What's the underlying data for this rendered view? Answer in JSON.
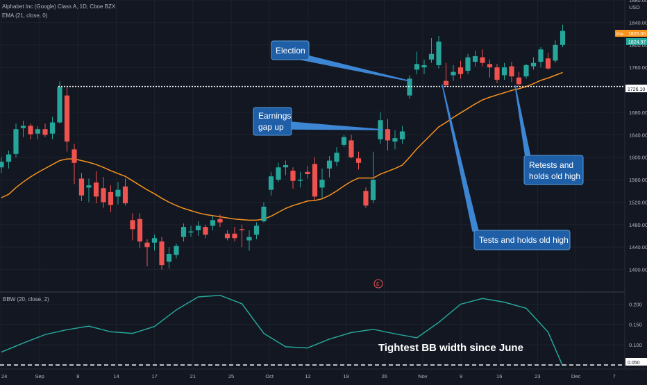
{
  "header": {
    "symbol_line": "Alphabet Inc (Google) Class A, 1D, Cboe BZX",
    "ema_line": "EMA (21, close, 0)",
    "bbw_line": "BBW (20, close, 2)",
    "currency": "USD"
  },
  "price_badges": {
    "pre_label": "Pre",
    "pre_value": "1825.00",
    "last_value": "1824.97",
    "level_value": "1726.10"
  },
  "colors": {
    "background": "#131722",
    "grid": "#1e222d",
    "up": "#26a69a",
    "down": "#ef5350",
    "ema": "#f7931e",
    "bbw": "#26a69a",
    "callout": "#1f5fa8",
    "callout_border": "#5b9bd5"
  },
  "annotations": {
    "election": "Election",
    "earnings_line1": "Earnings",
    "earnings_line2": "gap up",
    "tests": "Tests and holds old high",
    "retests_line1": "Retests and",
    "retests_line2": "holds old high",
    "tightest": "Tightest BB width since June",
    "earnings_marker": "E"
  },
  "chart_data": [
    {
      "type": "candlestick",
      "title": "Alphabet Inc (Google) Class A, 1D, Cboe BZX",
      "y_range": [
        1360,
        1880
      ],
      "y_ticks": [
        "1400.00",
        "1440.00",
        "1480.00",
        "1520.00",
        "1560.00",
        "1600.00",
        "1640.00",
        "1680.00",
        "1760.00",
        "1800.00",
        "1840.00",
        "1880.00"
      ],
      "x_ticks": [
        "24",
        "Sep",
        "8",
        "14",
        "17",
        "21",
        "25",
        "Oct",
        "12",
        "19",
        "26",
        "Nov",
        "9",
        "16",
        "23",
        "Dec",
        "7"
      ],
      "horizontal_level": 1726.1,
      "ohlc": [
        {
          "o": 1582,
          "h": 1600,
          "l": 1572,
          "c": 1592
        },
        {
          "o": 1592,
          "h": 1612,
          "l": 1580,
          "c": 1605
        },
        {
          "o": 1606,
          "h": 1660,
          "l": 1600,
          "c": 1650
        },
        {
          "o": 1652,
          "h": 1665,
          "l": 1636,
          "c": 1656
        },
        {
          "o": 1656,
          "h": 1660,
          "l": 1632,
          "c": 1641
        },
        {
          "o": 1642,
          "h": 1655,
          "l": 1632,
          "c": 1650
        },
        {
          "o": 1650,
          "h": 1660,
          "l": 1636,
          "c": 1640
        },
        {
          "o": 1642,
          "h": 1672,
          "l": 1632,
          "c": 1662
        },
        {
          "o": 1662,
          "h": 1735,
          "l": 1660,
          "c": 1725
        },
        {
          "o": 1710,
          "h": 1725,
          "l": 1610,
          "c": 1628
        },
        {
          "o": 1614,
          "h": 1624,
          "l": 1552,
          "c": 1590
        },
        {
          "o": 1562,
          "h": 1572,
          "l": 1522,
          "c": 1532
        },
        {
          "o": 1546,
          "h": 1562,
          "l": 1520,
          "c": 1550
        },
        {
          "o": 1555,
          "h": 1575,
          "l": 1518,
          "c": 1530
        },
        {
          "o": 1545,
          "h": 1565,
          "l": 1510,
          "c": 1520
        },
        {
          "o": 1538,
          "h": 1550,
          "l": 1502,
          "c": 1515
        },
        {
          "o": 1530,
          "h": 1556,
          "l": 1516,
          "c": 1542
        },
        {
          "o": 1548,
          "h": 1562,
          "l": 1514,
          "c": 1518
        },
        {
          "o": 1488,
          "h": 1500,
          "l": 1452,
          "c": 1472
        },
        {
          "o": 1490,
          "h": 1500,
          "l": 1438,
          "c": 1450
        },
        {
          "o": 1448,
          "h": 1454,
          "l": 1406,
          "c": 1440
        },
        {
          "o": 1448,
          "h": 1462,
          "l": 1434,
          "c": 1456
        },
        {
          "o": 1450,
          "h": 1458,
          "l": 1400,
          "c": 1408
        },
        {
          "o": 1414,
          "h": 1440,
          "l": 1402,
          "c": 1428
        },
        {
          "o": 1426,
          "h": 1446,
          "l": 1420,
          "c": 1442
        },
        {
          "o": 1458,
          "h": 1482,
          "l": 1450,
          "c": 1476
        },
        {
          "o": 1466,
          "h": 1478,
          "l": 1458,
          "c": 1468
        },
        {
          "o": 1470,
          "h": 1486,
          "l": 1460,
          "c": 1478
        },
        {
          "o": 1476,
          "h": 1480,
          "l": 1456,
          "c": 1462
        },
        {
          "o": 1478,
          "h": 1496,
          "l": 1470,
          "c": 1488
        },
        {
          "o": 1490,
          "h": 1498,
          "l": 1476,
          "c": 1484
        },
        {
          "o": 1464,
          "h": 1470,
          "l": 1452,
          "c": 1456
        },
        {
          "o": 1464,
          "h": 1476,
          "l": 1450,
          "c": 1456
        },
        {
          "o": 1472,
          "h": 1480,
          "l": 1440,
          "c": 1470
        },
        {
          "o": 1452,
          "h": 1470,
          "l": 1434,
          "c": 1458
        },
        {
          "o": 1462,
          "h": 1484,
          "l": 1454,
          "c": 1478
        },
        {
          "o": 1486,
          "h": 1520,
          "l": 1484,
          "c": 1512
        },
        {
          "o": 1542,
          "h": 1574,
          "l": 1532,
          "c": 1566
        },
        {
          "o": 1560,
          "h": 1590,
          "l": 1556,
          "c": 1582
        },
        {
          "o": 1582,
          "h": 1594,
          "l": 1568,
          "c": 1586
        },
        {
          "o": 1576,
          "h": 1582,
          "l": 1544,
          "c": 1558
        },
        {
          "o": 1558,
          "h": 1574,
          "l": 1546,
          "c": 1560
        },
        {
          "o": 1574,
          "h": 1584,
          "l": 1562,
          "c": 1570
        },
        {
          "o": 1588,
          "h": 1600,
          "l": 1522,
          "c": 1530
        },
        {
          "o": 1546,
          "h": 1580,
          "l": 1528,
          "c": 1560
        },
        {
          "o": 1580,
          "h": 1602,
          "l": 1564,
          "c": 1594
        },
        {
          "o": 1592,
          "h": 1618,
          "l": 1584,
          "c": 1608
        },
        {
          "o": 1622,
          "h": 1640,
          "l": 1618,
          "c": 1636
        },
        {
          "o": 1630,
          "h": 1640,
          "l": 1598,
          "c": 1600
        },
        {
          "o": 1598,
          "h": 1610,
          "l": 1578,
          "c": 1590
        },
        {
          "o": 1540,
          "h": 1546,
          "l": 1510,
          "c": 1514
        },
        {
          "o": 1524,
          "h": 1610,
          "l": 1518,
          "c": 1560
        },
        {
          "o": 1632,
          "h": 1680,
          "l": 1624,
          "c": 1666
        },
        {
          "o": 1650,
          "h": 1668,
          "l": 1612,
          "c": 1630
        },
        {
          "o": 1628,
          "h": 1648,
          "l": 1614,
          "c": 1634
        },
        {
          "o": 1632,
          "h": 1656,
          "l": 1624,
          "c": 1646
        },
        {
          "o": 1710,
          "h": 1746,
          "l": 1704,
          "c": 1740
        },
        {
          "o": 1756,
          "h": 1788,
          "l": 1748,
          "c": 1766
        },
        {
          "o": 1760,
          "h": 1774,
          "l": 1748,
          "c": 1764
        },
        {
          "o": 1774,
          "h": 1812,
          "l": 1768,
          "c": 1784
        },
        {
          "o": 1764,
          "h": 1816,
          "l": 1758,
          "c": 1806
        },
        {
          "o": 1736,
          "h": 1768,
          "l": 1726,
          "c": 1728
        },
        {
          "o": 1746,
          "h": 1764,
          "l": 1736,
          "c": 1752
        },
        {
          "o": 1760,
          "h": 1772,
          "l": 1740,
          "c": 1748
        },
        {
          "o": 1754,
          "h": 1784,
          "l": 1748,
          "c": 1778
        },
        {
          "o": 1770,
          "h": 1790,
          "l": 1762,
          "c": 1780
        },
        {
          "o": 1778,
          "h": 1792,
          "l": 1762,
          "c": 1768
        },
        {
          "o": 1766,
          "h": 1774,
          "l": 1742,
          "c": 1760
        },
        {
          "o": 1760,
          "h": 1766,
          "l": 1732,
          "c": 1738
        },
        {
          "o": 1746,
          "h": 1768,
          "l": 1738,
          "c": 1760
        },
        {
          "o": 1762,
          "h": 1770,
          "l": 1734,
          "c": 1744
        },
        {
          "o": 1742,
          "h": 1752,
          "l": 1726,
          "c": 1730
        },
        {
          "o": 1744,
          "h": 1766,
          "l": 1740,
          "c": 1764
        },
        {
          "o": 1762,
          "h": 1778,
          "l": 1756,
          "c": 1768
        },
        {
          "o": 1770,
          "h": 1796,
          "l": 1760,
          "c": 1792
        },
        {
          "o": 1776,
          "h": 1786,
          "l": 1756,
          "c": 1758
        },
        {
          "o": 1772,
          "h": 1808,
          "l": 1768,
          "c": 1800
        },
        {
          "o": 1800,
          "h": 1836,
          "l": 1796,
          "c": 1825
        }
      ],
      "ema": [
        1528,
        1534,
        1546,
        1556,
        1565,
        1573,
        1580,
        1587,
        1594,
        1597,
        1597,
        1594,
        1591,
        1587,
        1582,
        1576,
        1571,
        1566,
        1558,
        1550,
        1542,
        1535,
        1527,
        1520,
        1514,
        1509,
        1505,
        1501,
        1498,
        1496,
        1494,
        1492,
        1490,
        1489,
        1488,
        1488,
        1490,
        1495,
        1502,
        1509,
        1514,
        1518,
        1522,
        1523,
        1526,
        1532,
        1540,
        1549,
        1557,
        1563,
        1563,
        1563,
        1570,
        1575,
        1580,
        1586,
        1600,
        1615,
        1628,
        1641,
        1654,
        1662,
        1671,
        1679,
        1687,
        1695,
        1702,
        1707,
        1711,
        1715,
        1719,
        1722,
        1726,
        1731,
        1737,
        1741,
        1746,
        1751
      ]
    },
    {
      "type": "line",
      "title": "BBW (20, close, 2)",
      "y_range": [
        0.04,
        0.23
      ],
      "y_ticks": [
        "0.050",
        "0.100",
        "0.150",
        "0.200"
      ],
      "reference_level": 0.05,
      "x": [
        0,
        3,
        6,
        9,
        12,
        15,
        18,
        21,
        24,
        27,
        30,
        33,
        36,
        39,
        42,
        45,
        48,
        51,
        54,
        57,
        60,
        63,
        66,
        69,
        72,
        75,
        77
      ],
      "values": [
        0.082,
        0.104,
        0.125,
        0.137,
        0.146,
        0.132,
        0.128,
        0.145,
        0.186,
        0.218,
        0.222,
        0.201,
        0.128,
        0.095,
        0.092,
        0.114,
        0.13,
        0.138,
        0.127,
        0.117,
        0.155,
        0.2,
        0.214,
        0.205,
        0.19,
        0.131,
        0.048
      ]
    }
  ]
}
